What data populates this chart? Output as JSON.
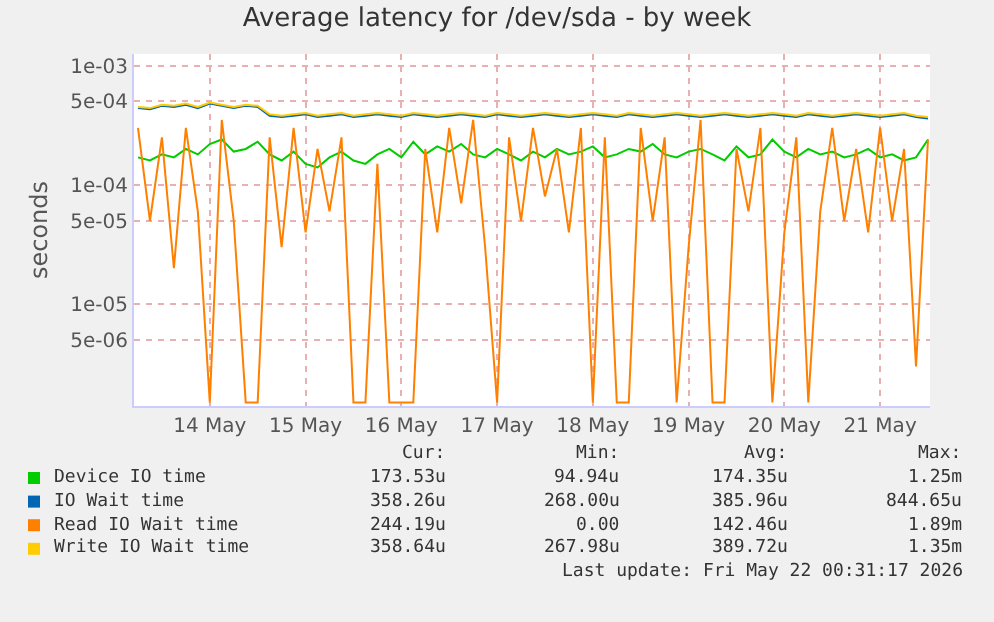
{
  "chart_data": {
    "type": "line",
    "title": "Average latency for /dev/sda - by week",
    "ylabel": "seconds",
    "log": "y",
    "grid": true,
    "legend": "bottom left",
    "marker": "none",
    "line_style": "solid",
    "x": [
      "2026-05-13T18:00",
      "2026-05-13T21:00",
      "2026-05-14T00:00",
      "2026-05-14T03:00",
      "2026-05-14T06:00",
      "2026-05-14T09:00",
      "2026-05-14T12:00",
      "2026-05-14T15:00",
      "2026-05-14T18:00",
      "2026-05-14T21:00",
      "2026-05-15T00:00",
      "2026-05-15T03:00",
      "2026-05-15T06:00",
      "2026-05-15T09:00",
      "2026-05-15T12:00",
      "2026-05-15T15:00",
      "2026-05-15T18:00",
      "2026-05-15T21:00",
      "2026-05-16T00:00",
      "2026-05-16T03:00",
      "2026-05-16T06:00",
      "2026-05-16T09:00",
      "2026-05-16T12:00",
      "2026-05-16T15:00",
      "2026-05-16T18:00",
      "2026-05-16T21:00",
      "2026-05-17T00:00",
      "2026-05-17T03:00",
      "2026-05-17T06:00",
      "2026-05-17T09:00",
      "2026-05-17T12:00",
      "2026-05-17T15:00",
      "2026-05-17T18:00",
      "2026-05-17T21:00",
      "2026-05-18T00:00",
      "2026-05-18T03:00",
      "2026-05-18T06:00",
      "2026-05-18T09:00",
      "2026-05-18T12:00",
      "2026-05-18T15:00",
      "2026-05-18T18:00",
      "2026-05-18T21:00",
      "2026-05-19T00:00",
      "2026-05-19T03:00",
      "2026-05-19T06:00",
      "2026-05-19T09:00",
      "2026-05-19T12:00",
      "2026-05-19T15:00",
      "2026-05-19T18:00",
      "2026-05-19T21:00",
      "2026-05-20T00:00",
      "2026-05-20T03:00",
      "2026-05-20T06:00",
      "2026-05-20T09:00",
      "2026-05-20T12:00",
      "2026-05-20T15:00",
      "2026-05-20T18:00",
      "2026-05-20T21:00",
      "2026-05-21T00:00",
      "2026-05-21T03:00",
      "2026-05-21T06:00",
      "2026-05-21T09:00",
      "2026-05-21T12:00",
      "2026-05-21T15:00",
      "2026-05-21T18:00",
      "2026-05-21T21:00",
      "2026-05-22T00:00"
    ],
    "xlim": [
      "2026-05-13T17:00",
      "2026-05-22T00:30"
    ],
    "xticks": [
      {
        "value": "2026-05-14T12:00",
        "label": "14 May"
      },
      {
        "value": "2026-05-15T12:00",
        "label": "15 May"
      },
      {
        "value": "2026-05-16T12:00",
        "label": "16 May"
      },
      {
        "value": "2026-05-17T12:00",
        "label": "17 May"
      },
      {
        "value": "2026-05-18T12:00",
        "label": "18 May"
      },
      {
        "value": "2026-05-19T12:00",
        "label": "19 May"
      },
      {
        "value": "2026-05-20T12:00",
        "label": "20 May"
      },
      {
        "value": "2026-05-21T12:00",
        "label": "21 May"
      }
    ],
    "ylim": [
      1.4e-06,
      0.00125
    ],
    "yticks": [
      {
        "value": 0.001,
        "label": "1e-03"
      },
      {
        "value": 0.0005,
        "label": "5e-04"
      },
      {
        "value": 0.0001,
        "label": "1e-04"
      },
      {
        "value": 5e-05,
        "label": "5e-05"
      },
      {
        "value": 1e-05,
        "label": "1e-05"
      },
      {
        "value": 5e-06,
        "label": "5e-06"
      }
    ],
    "series": [
      {
        "name": "Device IO time",
        "color": "#00cc00",
        "values": [
          0.00017,
          0.00016,
          0.00018,
          0.00017,
          0.0002,
          0.00018,
          0.00022,
          0.00024,
          0.00019,
          0.0002,
          0.00023,
          0.00018,
          0.00016,
          0.00019,
          0.00015,
          0.00014,
          0.00017,
          0.00019,
          0.00016,
          0.00015,
          0.00018,
          0.0002,
          0.00017,
          0.00023,
          0.00018,
          0.00021,
          0.00019,
          0.00022,
          0.00018,
          0.00017,
          0.0002,
          0.00018,
          0.00016,
          0.00019,
          0.00017,
          0.0002,
          0.00018,
          0.00019,
          0.00021,
          0.00017,
          0.00018,
          0.0002,
          0.00019,
          0.00022,
          0.00018,
          0.00017,
          0.00019,
          0.0002,
          0.00018,
          0.00016,
          0.00021,
          0.00017,
          0.00018,
          0.00024,
          0.00019,
          0.00017,
          0.0002,
          0.00018,
          0.00019,
          0.00017,
          0.00018,
          0.0002,
          0.00017,
          0.00018,
          0.00016,
          0.00017,
          0.00024
        ]
      },
      {
        "name": "IO Wait time",
        "color": "#0066b3",
        "values": [
          0.00044,
          0.00043,
          0.00046,
          0.00045,
          0.00047,
          0.00044,
          0.00048,
          0.00046,
          0.00044,
          0.00046,
          0.00045,
          0.00038,
          0.00037,
          0.00038,
          0.00039,
          0.00037,
          0.00038,
          0.00039,
          0.00037,
          0.00038,
          0.00039,
          0.00038,
          0.00037,
          0.00039,
          0.00038,
          0.00037,
          0.00038,
          0.00039,
          0.00038,
          0.00037,
          0.00039,
          0.00038,
          0.00037,
          0.00038,
          0.00039,
          0.00038,
          0.00037,
          0.00038,
          0.00039,
          0.00038,
          0.00037,
          0.00039,
          0.00038,
          0.00037,
          0.00038,
          0.00039,
          0.00038,
          0.00037,
          0.00038,
          0.00039,
          0.00038,
          0.00037,
          0.00038,
          0.00039,
          0.00038,
          0.00037,
          0.00039,
          0.00038,
          0.00037,
          0.00038,
          0.00039,
          0.00038,
          0.00037,
          0.00038,
          0.00039,
          0.00037,
          0.00036
        ]
      },
      {
        "name": "Read IO Wait time",
        "color": "#ff8000",
        "values": [
          0.0003,
          5e-05,
          0.00025,
          2e-05,
          0.0003,
          6e-05,
          1.5e-06,
          0.00035,
          5e-05,
          1.5e-06,
          1.5e-06,
          0.00025,
          3e-05,
          0.0003,
          4e-05,
          0.0002,
          6e-05,
          0.00025,
          1.5e-06,
          1.5e-06,
          0.00015,
          1.5e-06,
          1.5e-06,
          1.5e-06,
          0.0002,
          4e-05,
          0.0003,
          7e-05,
          0.00035,
          3e-05,
          1.5e-06,
          0.00025,
          5e-05,
          0.0003,
          8e-05,
          0.0002,
          4e-05,
          0.0003,
          1.5e-06,
          0.00025,
          1.5e-06,
          1.5e-06,
          0.0003,
          5e-05,
          0.00025,
          1.5e-06,
          3e-05,
          0.00035,
          1.5e-06,
          1.5e-06,
          0.0002,
          6e-05,
          0.0003,
          1.5e-06,
          4e-05,
          0.00025,
          1.5e-06,
          6e-05,
          0.0003,
          5e-05,
          0.0002,
          4e-05,
          0.0003,
          5e-05,
          0.0002,
          3e-06,
          0.00024
        ]
      },
      {
        "name": "Write IO Wait time",
        "color": "#ffcc00",
        "values": [
          0.00045,
          0.00044,
          0.00047,
          0.00046,
          0.00048,
          0.00045,
          0.00049,
          0.00047,
          0.00045,
          0.00047,
          0.00046,
          0.00039,
          0.00038,
          0.00039,
          0.0004,
          0.00038,
          0.00039,
          0.0004,
          0.00038,
          0.00039,
          0.0004,
          0.00039,
          0.00038,
          0.0004,
          0.00039,
          0.00038,
          0.00039,
          0.0004,
          0.00039,
          0.00038,
          0.0004,
          0.00039,
          0.00038,
          0.00039,
          0.0004,
          0.00039,
          0.00038,
          0.00039,
          0.0004,
          0.00039,
          0.00038,
          0.0004,
          0.00039,
          0.00038,
          0.00039,
          0.0004,
          0.00039,
          0.00038,
          0.00039,
          0.0004,
          0.00039,
          0.00038,
          0.00039,
          0.0004,
          0.00039,
          0.00038,
          0.0004,
          0.00039,
          0.00038,
          0.00039,
          0.0004,
          0.00039,
          0.00038,
          0.00039,
          0.0004,
          0.00038,
          0.00037
        ]
      }
    ],
    "annotations": [
      "Cur:",
      "Min:",
      "Avg:",
      "Max:",
      "173.53u",
      "94.94u",
      "174.35u",
      "1.25m",
      "358.26u",
      "268.00u",
      "385.96u",
      "844.65u",
      "244.19u",
      "0.00",
      "142.46u",
      "1.89m",
      "358.64u",
      "267.98u",
      "389.72u",
      "1.35m",
      "Last update: Fri May 22 00:31:17 2026"
    ]
  }
}
